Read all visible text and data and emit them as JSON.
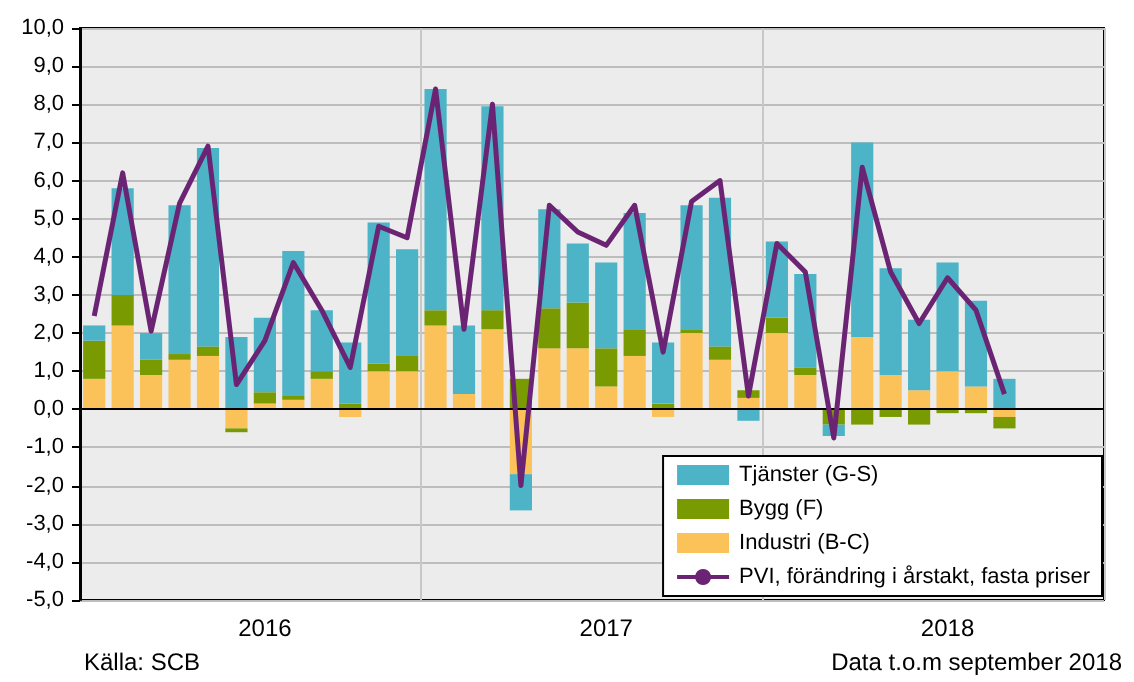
{
  "chart_data": {
    "type": "bar",
    "stacked": true,
    "categories": [
      null,
      null,
      null,
      null,
      null,
      null,
      "2016",
      null,
      null,
      null,
      null,
      null,
      null,
      null,
      null,
      null,
      null,
      null,
      "2017",
      null,
      null,
      null,
      null,
      null,
      null,
      null,
      null,
      null,
      null,
      null,
      "2018",
      null,
      null,
      null,
      null,
      null
    ],
    "series": [
      {
        "name": "Industri (B-C)",
        "color": "#fcc25a",
        "values": [
          0.8,
          2.2,
          0.9,
          1.3,
          1.4,
          -0.5,
          0.15,
          0.25,
          0.8,
          -0.2,
          1.0,
          1.0,
          2.2,
          0.4,
          2.1,
          -1.7,
          1.6,
          1.6,
          0.6,
          1.4,
          -0.2,
          2.0,
          1.3,
          0.3,
          2.0,
          0.9,
          0,
          1.9,
          0.9,
          0.5,
          1.0,
          0.6,
          -0.2,
          null,
          null,
          null
        ]
      },
      {
        "name": "Bygg (F)",
        "color": "#7a9a01",
        "values": [
          1.0,
          0.8,
          0.4,
          0.15,
          0.25,
          -0.1,
          0.3,
          0.1,
          0.2,
          0.15,
          0.2,
          0.4,
          0.4,
          0,
          0.5,
          0.8,
          1.05,
          1.2,
          1.0,
          0.7,
          0.15,
          0.1,
          0.35,
          0.2,
          0.4,
          0.2,
          -0.4,
          -0.4,
          -0.2,
          -0.4,
          -0.1,
          -0.1,
          -0.3,
          null,
          null,
          null
        ]
      },
      {
        "name": "Tjänster (G-S)",
        "color": "#4db3c6",
        "values": [
          0.4,
          2.8,
          0.7,
          3.9,
          5.2,
          1.9,
          1.95,
          3.8,
          1.6,
          1.6,
          3.7,
          2.8,
          5.8,
          1.8,
          5.35,
          -0.95,
          2.6,
          1.55,
          2.25,
          3.05,
          1.6,
          3.25,
          3.9,
          -0.3,
          2.0,
          2.45,
          -0.3,
          5.1,
          2.8,
          1.85,
          2.85,
          2.25,
          0.8,
          null,
          null,
          null
        ]
      },
      {
        "type": "line",
        "name": "PVI, förändring i årstakt, fasta priser",
        "color": "#6b2473",
        "values": [
          2.45,
          6.2,
          2.05,
          5.4,
          6.9,
          0.65,
          1.8,
          3.85,
          2.6,
          1.1,
          4.8,
          4.5,
          8.4,
          2.1,
          8.0,
          -2.0,
          5.35,
          4.65,
          4.3,
          5.35,
          1.5,
          5.45,
          6.0,
          0.35,
          4.35,
          3.6,
          -0.75,
          6.35,
          3.6,
          2.25,
          3.45,
          2.6,
          0.4,
          null,
          null,
          null
        ]
      }
    ],
    "ylim": [
      -5,
      10
    ],
    "yticks": [
      {
        "value": -5,
        "label": "-5,0"
      },
      {
        "value": -4,
        "label": "-4,0"
      },
      {
        "value": -3,
        "label": "-3,0"
      },
      {
        "value": -2,
        "label": "-2,0"
      },
      {
        "value": -1,
        "label": "-1,0"
      },
      {
        "value": 0,
        "label": "0,0"
      },
      {
        "value": 1,
        "label": "1,0"
      },
      {
        "value": 2,
        "label": "2,0"
      },
      {
        "value": 3,
        "label": "3,0"
      },
      {
        "value": 4,
        "label": "4,0"
      },
      {
        "value": 5,
        "label": "5,0"
      },
      {
        "value": 6,
        "label": "6,0"
      },
      {
        "value": 7,
        "label": "7,0"
      },
      {
        "value": 8,
        "label": "8,0"
      },
      {
        "value": 9,
        "label": "9,0"
      },
      {
        "value": 10,
        "label": "10,0"
      }
    ],
    "grid": true,
    "legend": "bottom right",
    "marker": "none",
    "annotations": [
      "Källa: SCB",
      "Data t.o.m september 2018"
    ]
  }
}
